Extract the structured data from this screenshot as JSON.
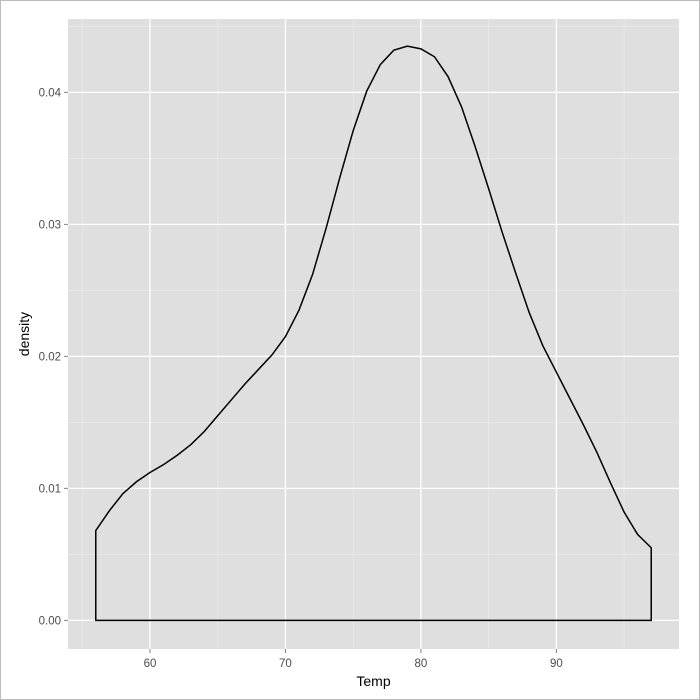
{
  "chart_data": {
    "type": "area",
    "title": "",
    "xlabel": "Temp",
    "ylabel": "density",
    "xlim": [
      53.95,
      99.05
    ],
    "ylim": [
      -0.00217,
      0.04556
    ],
    "x_ticks": [
      60,
      70,
      80,
      90
    ],
    "y_ticks": [
      0.0,
      0.01,
      0.02,
      0.03,
      0.04
    ],
    "x_tick_labels": [
      "60",
      "70",
      "80",
      "90"
    ],
    "y_tick_labels": [
      "0.00",
      "0.01",
      "0.02",
      "0.03",
      "0.04"
    ],
    "grid": true,
    "legend": "none",
    "series": [
      {
        "x": [
          56,
          57,
          58,
          59,
          60,
          61,
          62,
          63,
          64,
          65,
          66,
          67,
          68,
          69,
          70,
          71,
          72,
          73,
          74,
          75,
          76,
          77,
          78,
          79,
          80,
          81,
          82,
          83,
          84,
          85,
          86,
          87,
          88,
          89,
          90,
          91,
          92,
          93,
          94,
          95,
          96,
          97
        ],
        "y": [
          0.0068,
          0.0083,
          0.0096,
          0.0105,
          0.0112,
          0.0118,
          0.0125,
          0.0133,
          0.0143,
          0.0155,
          0.0167,
          0.0179,
          0.019,
          0.0201,
          0.0215,
          0.0235,
          0.0262,
          0.0297,
          0.0335,
          0.0371,
          0.0401,
          0.0421,
          0.0432,
          0.0435,
          0.0433,
          0.0427,
          0.0412,
          0.0389,
          0.0359,
          0.0327,
          0.0294,
          0.0263,
          0.0233,
          0.0208,
          0.0188,
          0.0168,
          0.0148,
          0.0127,
          0.0104,
          0.0082,
          0.0065,
          0.0055
        ]
      }
    ]
  },
  "colors": {
    "panel": "#dfdfdf",
    "grid_major": "#ffffff",
    "grid_minor": "#ebebeb",
    "line": "#000000",
    "tick_label": "#4d4d4d"
  }
}
